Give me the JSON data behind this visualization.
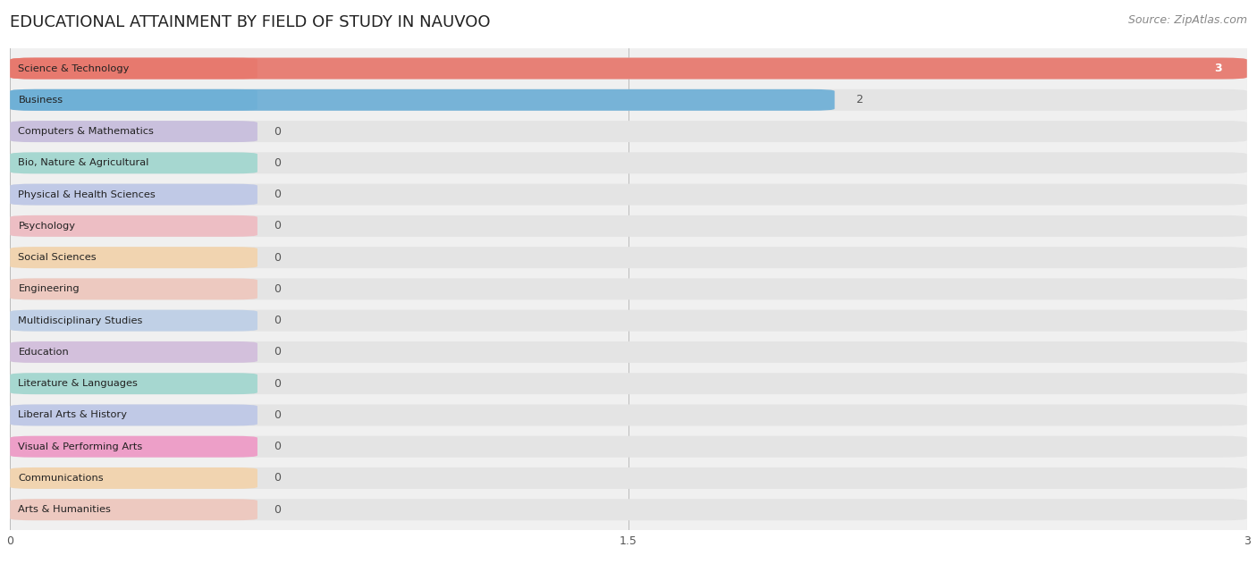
{
  "title": "EDUCATIONAL ATTAINMENT BY FIELD OF STUDY IN NAUVOO",
  "source": "Source: ZipAtlas.com",
  "categories": [
    "Science & Technology",
    "Business",
    "Computers & Mathematics",
    "Bio, Nature & Agricultural",
    "Physical & Health Sciences",
    "Psychology",
    "Social Sciences",
    "Engineering",
    "Multidisciplinary Studies",
    "Education",
    "Literature & Languages",
    "Liberal Arts & History",
    "Visual & Performing Arts",
    "Communications",
    "Arts & Humanities"
  ],
  "values": [
    3,
    2,
    0,
    0,
    0,
    0,
    0,
    0,
    0,
    0,
    0,
    0,
    0,
    0,
    0
  ],
  "bar_colors": [
    "#E8756A",
    "#6BAED6",
    "#B8A9D9",
    "#7ECFC4",
    "#A9B8E8",
    "#F4A6B0",
    "#FACA8E",
    "#F4B8A8",
    "#A8C4E8",
    "#C8A8D8",
    "#7ECFC4",
    "#A9B8E8",
    "#F472B6",
    "#FACA8E",
    "#F4B8A8"
  ],
  "xlim": [
    0,
    3
  ],
  "xticks": [
    0,
    1.5,
    3
  ],
  "background_color": "#ffffff",
  "plot_bg_color": "#f0f0f0",
  "title_fontsize": 13,
  "source_fontsize": 9,
  "bar_label_fontsize": 9,
  "tick_fontsize": 9,
  "bar_height": 0.68,
  "bar_gap": 1.0
}
